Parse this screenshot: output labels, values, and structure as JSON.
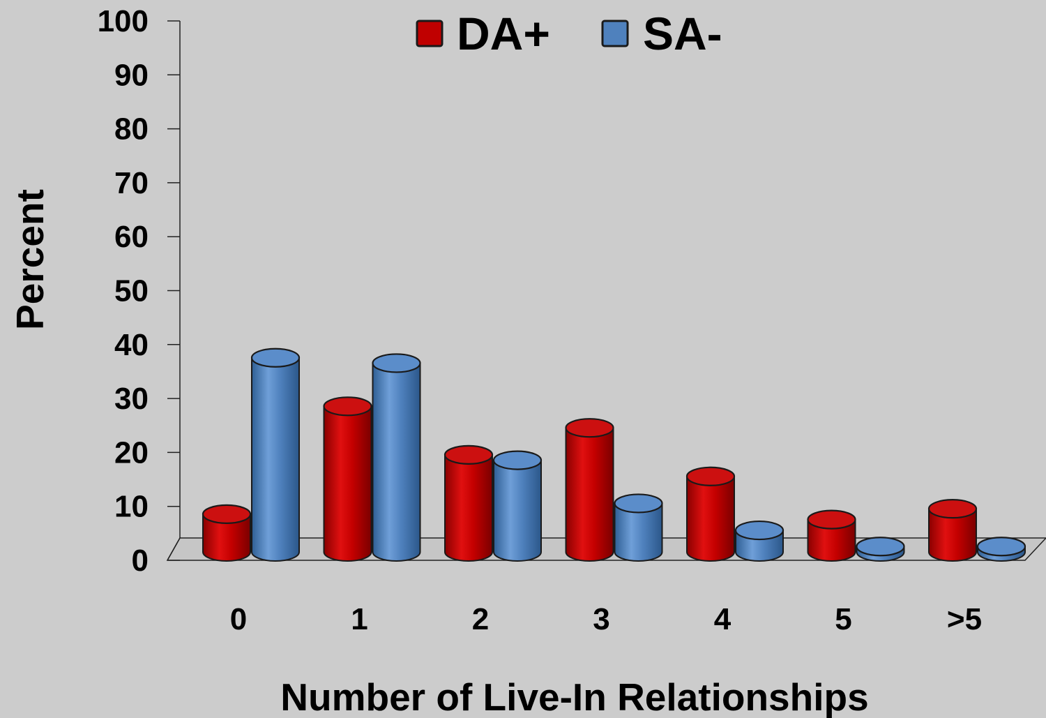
{
  "chart_data": {
    "type": "bar",
    "categories": [
      "0",
      "1",
      "2",
      "3",
      "4",
      "5",
      ">5"
    ],
    "series": [
      {
        "name": "DA+",
        "values": [
          7,
          27,
          18,
          23,
          14,
          6,
          8
        ],
        "color": "#c00000"
      },
      {
        "name": "SA-",
        "values": [
          36,
          35,
          17,
          9,
          4,
          1,
          1
        ],
        "color": "#4f81bd"
      }
    ],
    "xlabel": "Number of Live-In Relationships",
    "ylabel": "Percent",
    "ylim": [
      0,
      100
    ],
    "yticks": [
      "0",
      "10",
      "20",
      "30",
      "40",
      "50",
      "60",
      "70",
      "80",
      "90",
      "100"
    ],
    "legend_position": "top-center",
    "grid": false,
    "style": "3d-cylinder"
  }
}
